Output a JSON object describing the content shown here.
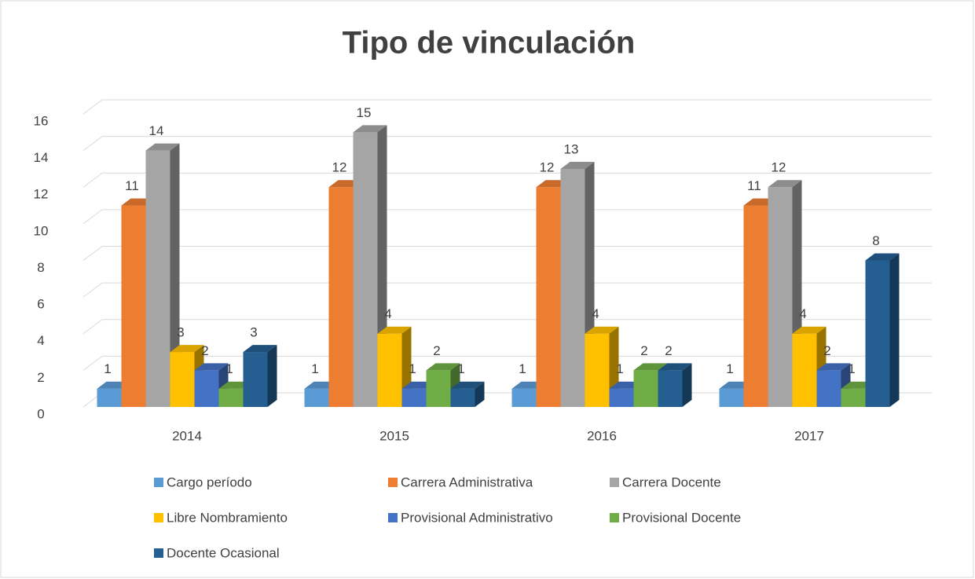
{
  "chart_data": {
    "type": "bar3d",
    "title": "Tipo de vinculación",
    "categories": [
      "2014",
      "2015",
      "2016",
      "2017"
    ],
    "series": [
      {
        "name": "Cargo período",
        "color": "#5b9bd5",
        "values": [
          1,
          1,
          1,
          1
        ]
      },
      {
        "name": "Carrera Administrativa",
        "color": "#ed7d31",
        "values": [
          11,
          12,
          12,
          11
        ]
      },
      {
        "name": "Carrera Docente",
        "color": "#a5a5a5",
        "values": [
          14,
          15,
          13,
          12
        ]
      },
      {
        "name": "Libre Nombramiento",
        "color": "#ffc000",
        "values": [
          3,
          4,
          4,
          4
        ]
      },
      {
        "name": "Provisional Administrativo",
        "color": "#4472c4",
        "values": [
          2,
          1,
          1,
          2
        ]
      },
      {
        "name": "Provisional Docente",
        "color": "#70ad47",
        "values": [
          1,
          2,
          2,
          1
        ]
      },
      {
        "name": "Docente Ocasional",
        "color": "#255e91",
        "values": [
          3,
          1,
          2,
          8
        ]
      }
    ],
    "ylim": [
      0,
      16
    ],
    "yticks": [
      0,
      2,
      4,
      6,
      8,
      10,
      12,
      14,
      16
    ],
    "grid": true,
    "legend": "bottom"
  }
}
